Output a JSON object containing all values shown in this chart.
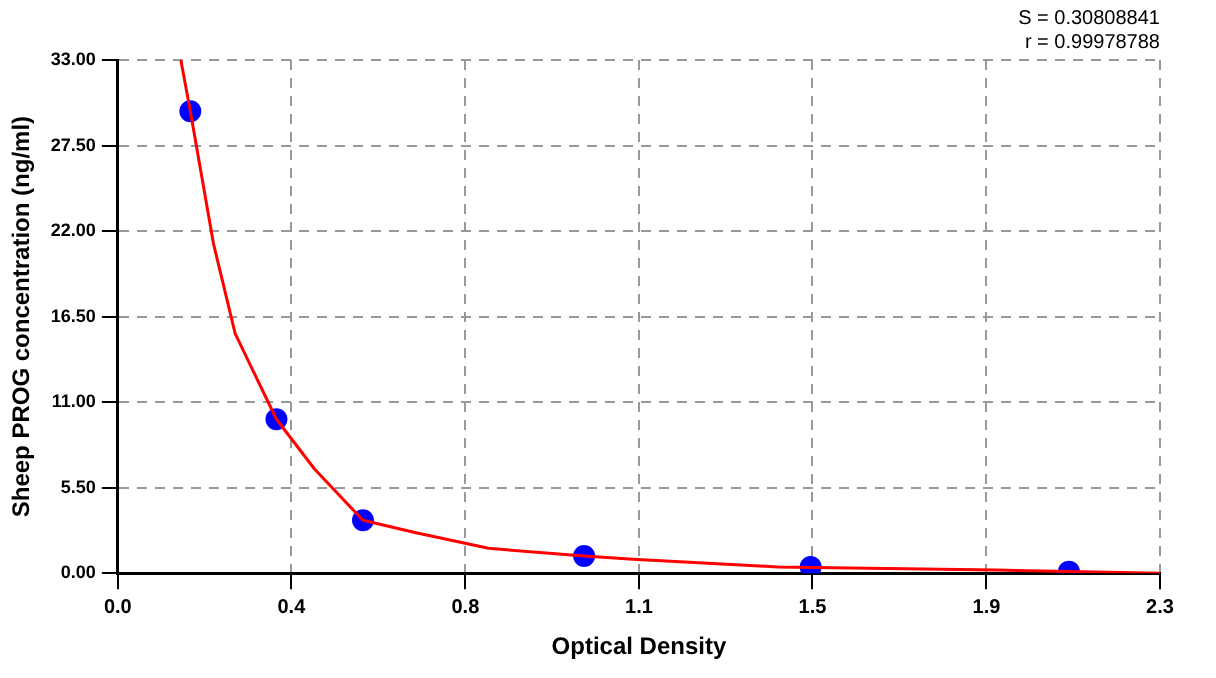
{
  "chart_data": {
    "type": "scatter",
    "xlabel": "Optical Density",
    "ylabel": "Sheep PROG concentration (ng/ml)",
    "annotations": [
      "S = 0.30808841",
      "r = 0.99978788"
    ],
    "xlim": [
      0,
      2.3
    ],
    "xticks": [
      {
        "value": 0,
        "label": "0.0"
      },
      {
        "value": 0.383,
        "label": "0.4"
      },
      {
        "value": 0.767,
        "label": "0.8"
      },
      {
        "value": 1.15,
        "label": "1.1"
      },
      {
        "value": 1.533,
        "label": "1.5"
      },
      {
        "value": 1.917,
        "label": "1.9"
      },
      {
        "value": 2.3,
        "label": "2.3"
      }
    ],
    "ylim": [
      0,
      33
    ],
    "yticks": [
      {
        "value": 0,
        "label": "0.00"
      },
      {
        "value": 5.5,
        "label": "5.50"
      },
      {
        "value": 11,
        "label": "11.00"
      },
      {
        "value": 16.5,
        "label": "16.50"
      },
      {
        "value": 22,
        "label": "22.00"
      },
      {
        "value": 27.5,
        "label": "27.50"
      },
      {
        "value": 33,
        "label": "33.00"
      }
    ],
    "grid": true,
    "marker": "circle",
    "series": [
      {
        "type": "line",
        "color": "#ff0000",
        "marker": "none",
        "x": [
          0.139,
          0.16,
          0.211,
          0.259,
          0.35,
          0.434,
          0.541,
          0.658,
          0.818,
          1.029,
          1.137,
          1.457,
          1.936,
          2.3
        ],
        "values": [
          33,
          29.7,
          21.2,
          15.4,
          9.9,
          6.7,
          3.4,
          2.6,
          1.6,
          1.1,
          0.9,
          0.4,
          0.2,
          0
        ]
      },
      {
        "type": "scatter",
        "color": "#0000ff",
        "x": [
          0.16,
          0.35,
          0.541,
          1.029,
          1.529,
          2.099
        ],
        "values": [
          29.7,
          9.9,
          3.4,
          1.1,
          0.4,
          0.1
        ]
      }
    ]
  }
}
